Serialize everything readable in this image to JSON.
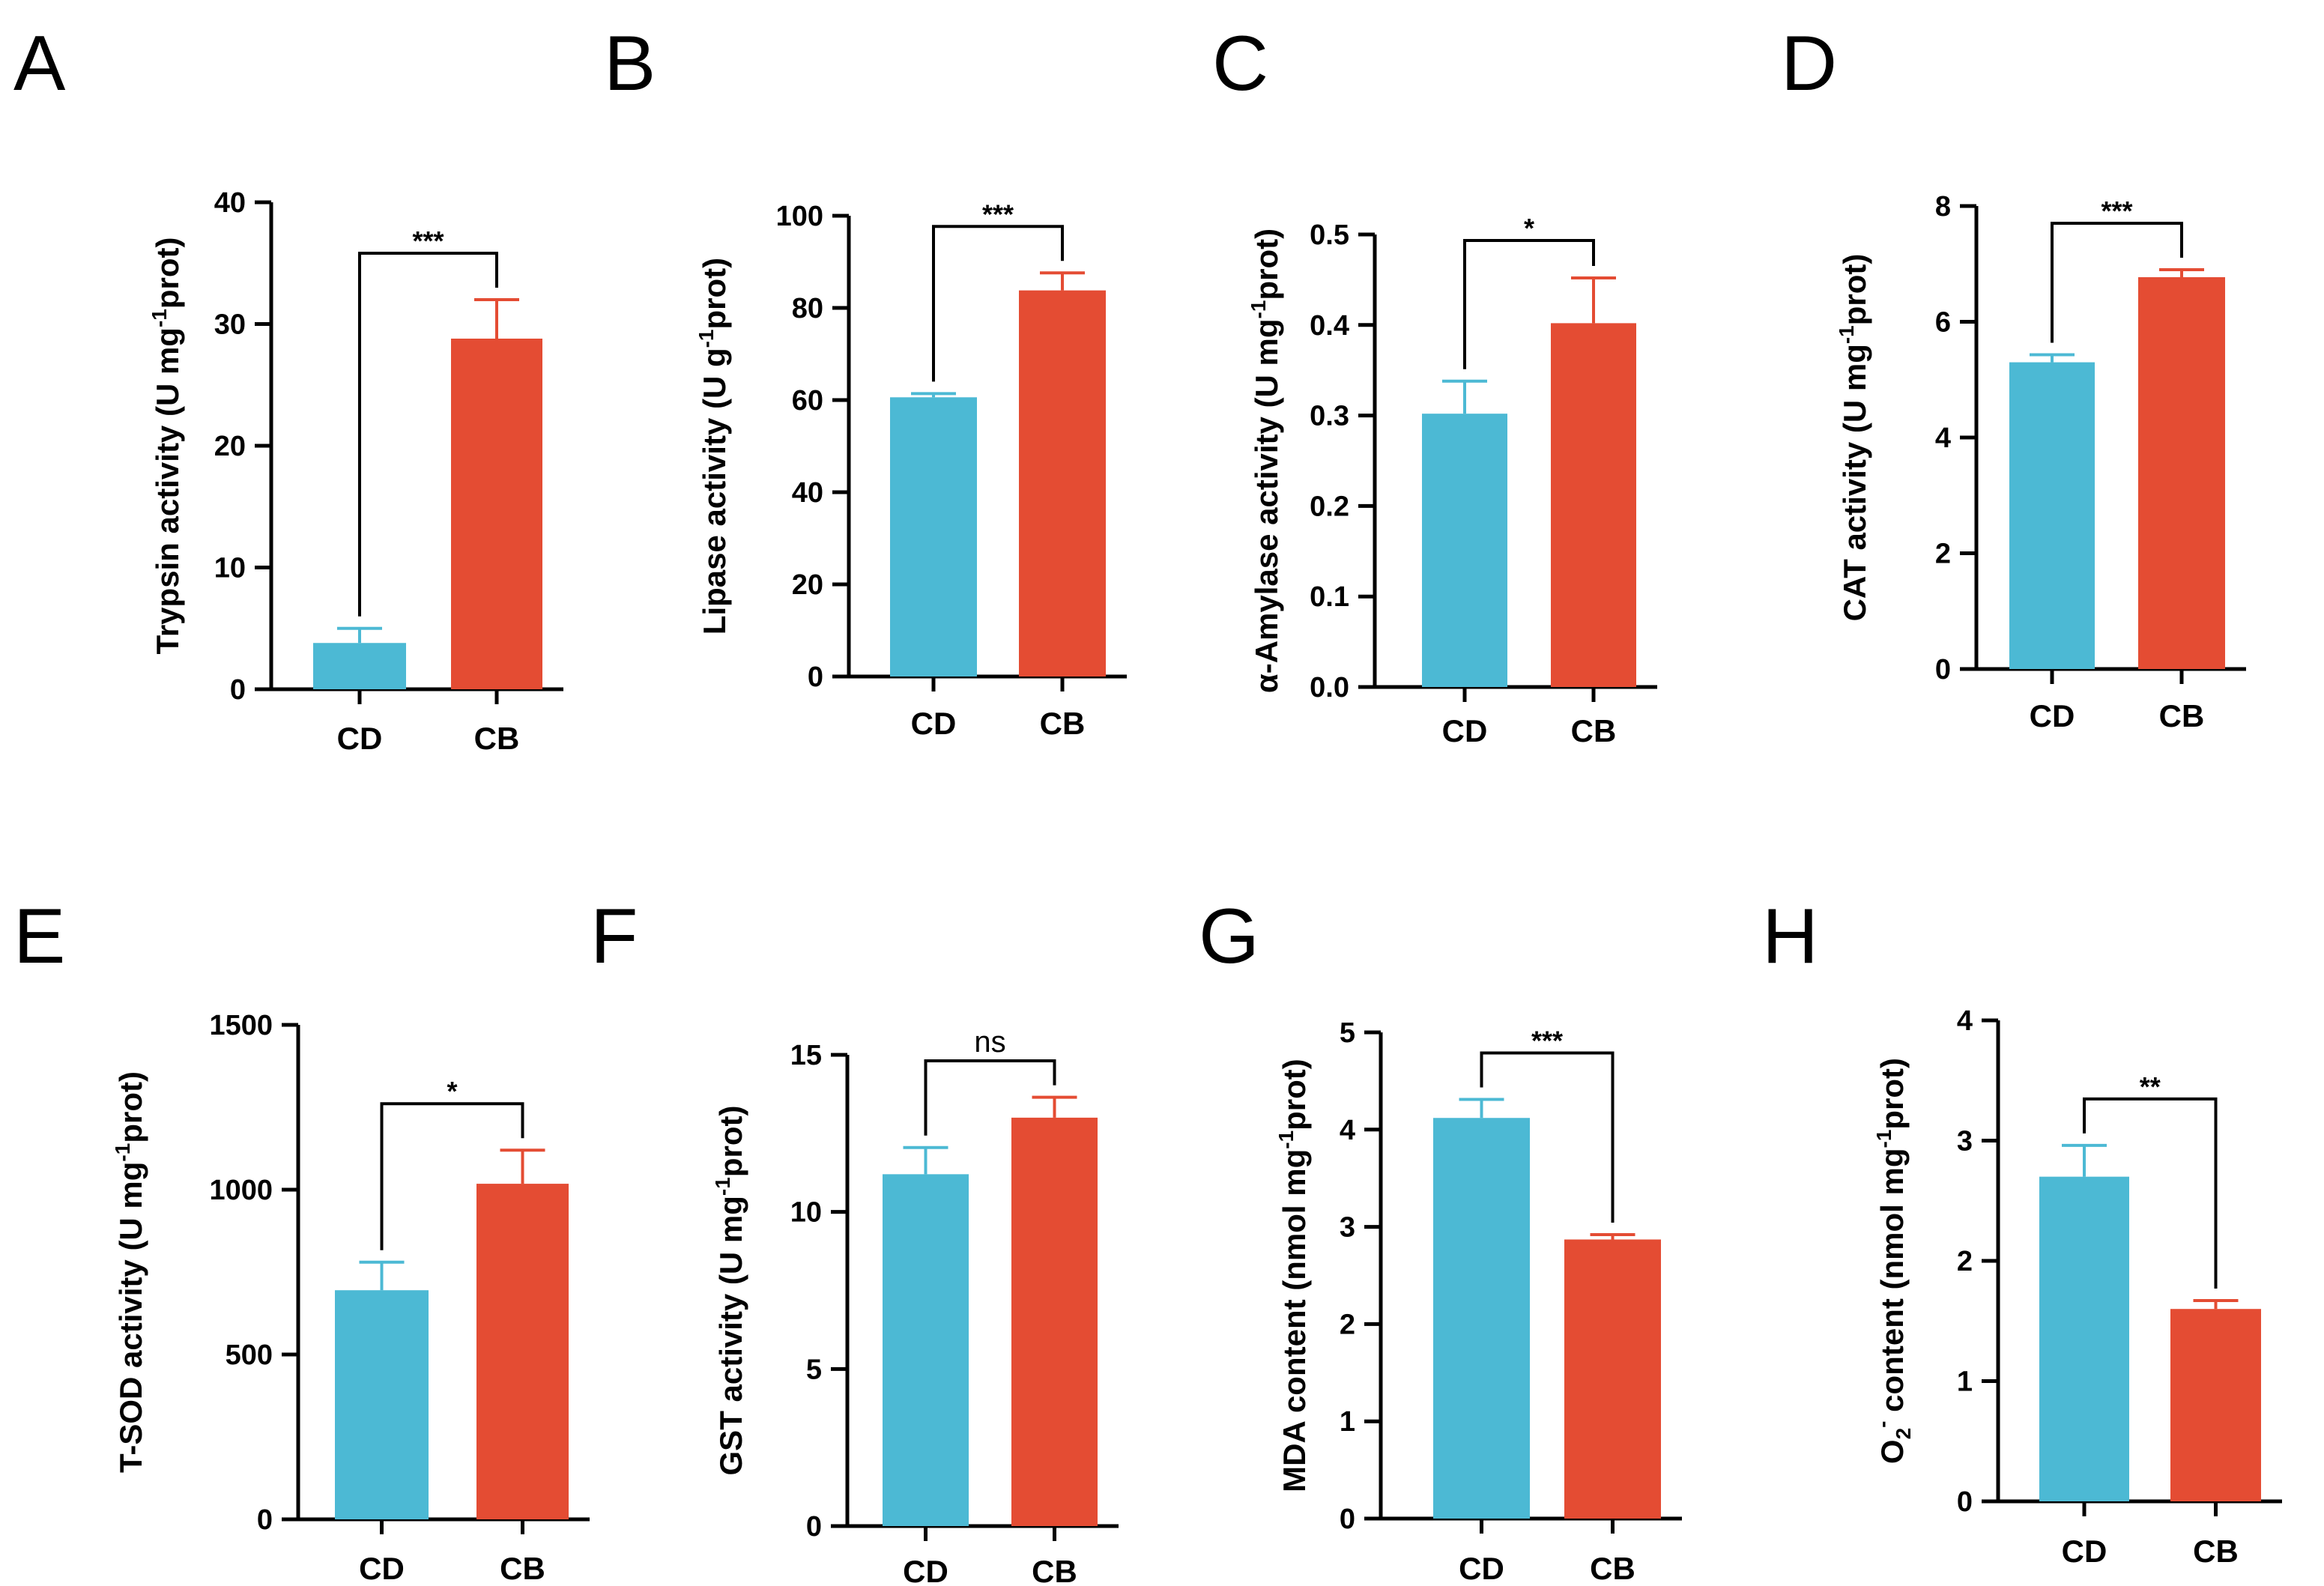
{
  "colors": {
    "CD": "#4cb9d4",
    "CB": "#e44c33",
    "axis": "#000000"
  },
  "chart_data": [
    {
      "type": "bar",
      "panel": "A",
      "ylabel": {
        "pre": "Trypsin activity  (U mg",
        "sup": "-1",
        "post": "prot)"
      },
      "categories": [
        "CD",
        "CB"
      ],
      "values": [
        3.8,
        28.8
      ],
      "errors": [
        1.2,
        3.2
      ],
      "ylim": [
        0,
        40
      ],
      "yticks": [
        "0",
        "10",
        "20",
        "30",
        "40"
      ],
      "significance": "***"
    },
    {
      "type": "bar",
      "panel": "B",
      "ylabel": {
        "pre": "Lipase activity  (U g",
        "sup": "-1",
        "post": "prot)"
      },
      "categories": [
        "CD",
        "CB"
      ],
      "values": [
        60.6,
        83.8
      ],
      "errors": [
        0.8,
        3.8
      ],
      "ylim": [
        0,
        100
      ],
      "yticks": [
        "0",
        "20",
        "40",
        "60",
        "80",
        "100"
      ],
      "significance": "***"
    },
    {
      "type": "bar",
      "panel": "C",
      "ylabel": {
        "pre": "α-Amylase activity  (U mg",
        "sup": "-1",
        "post": "prot)"
      },
      "categories": [
        "CD",
        "CB"
      ],
      "values": [
        0.302,
        0.402
      ],
      "errors": [
        0.036,
        0.05
      ],
      "ylim": [
        0,
        0.5
      ],
      "yticks": [
        "0.0",
        "0.1",
        "0.2",
        "0.3",
        "0.4",
        "0.5"
      ],
      "significance": "*"
    },
    {
      "type": "bar",
      "panel": "D",
      "ylabel": {
        "pre": "CAT activity  (U mg",
        "sup": "-1",
        "post": "prot)"
      },
      "categories": [
        "CD",
        "CB"
      ],
      "values": [
        5.3,
        6.77
      ],
      "errors": [
        0.13,
        0.13
      ],
      "ylim": [
        0,
        8
      ],
      "yticks": [
        "0",
        "2",
        "4",
        "6",
        "8"
      ],
      "significance": "***"
    },
    {
      "type": "bar",
      "panel": "E",
      "ylabel": {
        "pre": "T-SOD activity  (U mg",
        "sup": "-1",
        "post": "prot)"
      },
      "categories": [
        "CD",
        "CB"
      ],
      "values": [
        695,
        1018
      ],
      "errors": [
        85,
        102
      ],
      "ylim": [
        0,
        1500
      ],
      "yticks": [
        "0",
        "500",
        "1000",
        "1500"
      ],
      "significance": "*"
    },
    {
      "type": "bar",
      "panel": "F",
      "ylabel": {
        "pre": "GST activity  (U mg",
        "sup": "-1",
        "post": "prot)"
      },
      "categories": [
        "CD",
        "CB"
      ],
      "values": [
        11.2,
        13.0
      ],
      "errors": [
        0.85,
        0.65
      ],
      "ylim": [
        0,
        15
      ],
      "yticks": [
        "0",
        "5",
        "10",
        "15"
      ],
      "significance": "ns"
    },
    {
      "type": "bar",
      "panel": "G",
      "ylabel": {
        "pre": "MDA content  (nmol mg",
        "sup": "-1",
        "post": "prot)"
      },
      "categories": [
        "CD",
        "CB"
      ],
      "values": [
        4.12,
        2.87
      ],
      "errors": [
        0.19,
        0.05
      ],
      "ylim": [
        0,
        5
      ],
      "yticks": [
        "0",
        "1",
        "2",
        "3",
        "4",
        "5"
      ],
      "significance": "***"
    },
    {
      "type": "bar",
      "panel": "H",
      "ylabel": {
        "pre": "O",
        "sub": "2",
        "sup_pre": "-",
        "mid": " content  (nmol mg",
        "sup": "-1",
        "post": "prot)"
      },
      "categories": [
        "CD",
        "CB"
      ],
      "values": [
        2.7,
        1.6
      ],
      "errors": [
        0.26,
        0.07
      ],
      "ylim": [
        0,
        4
      ],
      "yticks": [
        "0",
        "1",
        "2",
        "3",
        "4"
      ],
      "significance": "**"
    }
  ]
}
